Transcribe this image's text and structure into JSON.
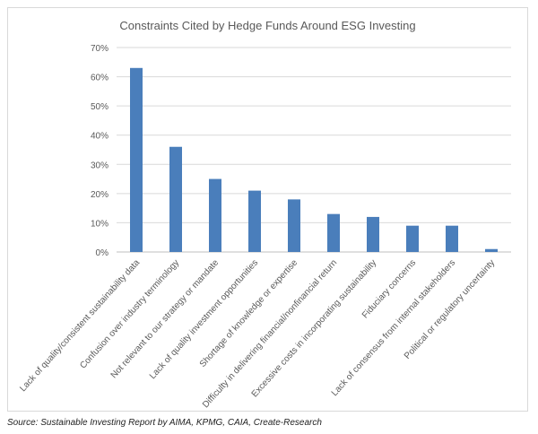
{
  "chart_data": {
    "type": "bar",
    "title": "Constraints Cited by Hedge Funds Around ESG Investing",
    "xlabel": "",
    "ylabel": "",
    "categories": [
      "Lack of quality/consistent sustainability data",
      "Confusion over industry terminology",
      "Not relevant to our strategy or mandate",
      "Lack of quality investment opportunities",
      "Shortage of knowledge or expertise",
      "Difficulty in delivering financial/nonfinancial return",
      "Excessive costs in incorporating sustainability",
      "Fiduciary concerns",
      "Lack of consensus from internal stakeholders",
      "Political or regulatory uncertainty"
    ],
    "values": [
      63,
      36,
      25,
      21,
      18,
      13,
      12,
      9,
      9,
      1
    ],
    "ylim": [
      0,
      70
    ],
    "yticks": [
      0,
      10,
      20,
      30,
      40,
      50,
      60,
      70
    ],
    "ytick_suffix": "%",
    "grid": true,
    "bar_color": "#4a7ebb",
    "grid_color": "#d9d9d9"
  },
  "footer": {
    "source": "Source: Sustainable Investing Report by AIMA, KPMG, CAIA, Create-Research"
  }
}
